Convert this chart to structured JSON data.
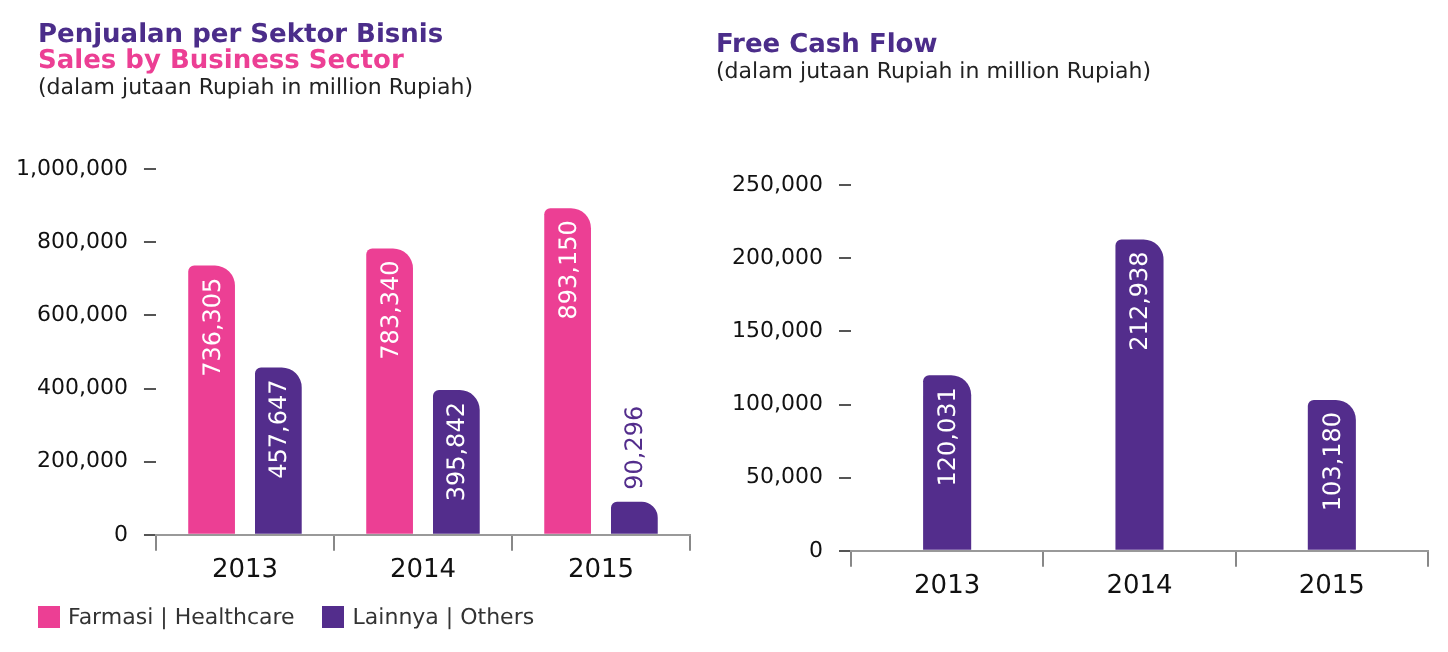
{
  "chart_data": [
    {
      "type": "bar",
      "title": "Penjualan per Sektor Bisnis",
      "subtitle": "Sales by Business Sector",
      "annotations": [
        "(dalam jutaan Rupiah in million Rupiah)"
      ],
      "categories": [
        "2013",
        "2014",
        "2015"
      ],
      "series": [
        {
          "name": "Farmasi | Healthcare",
          "color": "#ec3f94",
          "values": [
            736305,
            783340,
            893150
          ],
          "value_labels": [
            "736,305",
            "783,340",
            "893,150"
          ]
        },
        {
          "name": "Lainnya | Others",
          "color": "#532d8c",
          "values": [
            457647,
            395842,
            90296
          ],
          "value_labels": [
            "457,647",
            "395,842",
            "90,296"
          ]
        }
      ],
      "ylim": [
        0,
        1000000
      ],
      "yticks": [
        0,
        {
          "value": 200000,
          "label": "200,000"
        },
        {
          "value": 400000,
          "label": "400,000"
        },
        {
          "value": 600000,
          "label": "600,000"
        },
        {
          "value": 800000,
          "label": "800,000"
        },
        {
          "value": 1000000,
          "label": "1,000,000"
        }
      ],
      "grid": false,
      "legend": "bottom left"
    },
    {
      "type": "bar",
      "title": "Free Cash Flow",
      "subtitle": "(dalam jutaan Rupiah in million Rupiah)",
      "categories": [
        "2013",
        "2014",
        "2015"
      ],
      "series": [
        {
          "color": "#532d8c",
          "values": [
            120031,
            212938,
            103180
          ],
          "value_labels": [
            "120,031",
            "212,938",
            "103,180"
          ]
        }
      ],
      "ylim": [
        0,
        250000
      ],
      "yticks": [
        0,
        {
          "value": 50000,
          "label": "50,000"
        },
        {
          "value": 100000,
          "label": "100,000"
        },
        {
          "value": 150000,
          "label": "150,000"
        },
        {
          "value": 200000,
          "label": "200,000"
        },
        {
          "value": 250000,
          "label": "250,000"
        }
      ],
      "grid": false,
      "legend": false
    }
  ]
}
